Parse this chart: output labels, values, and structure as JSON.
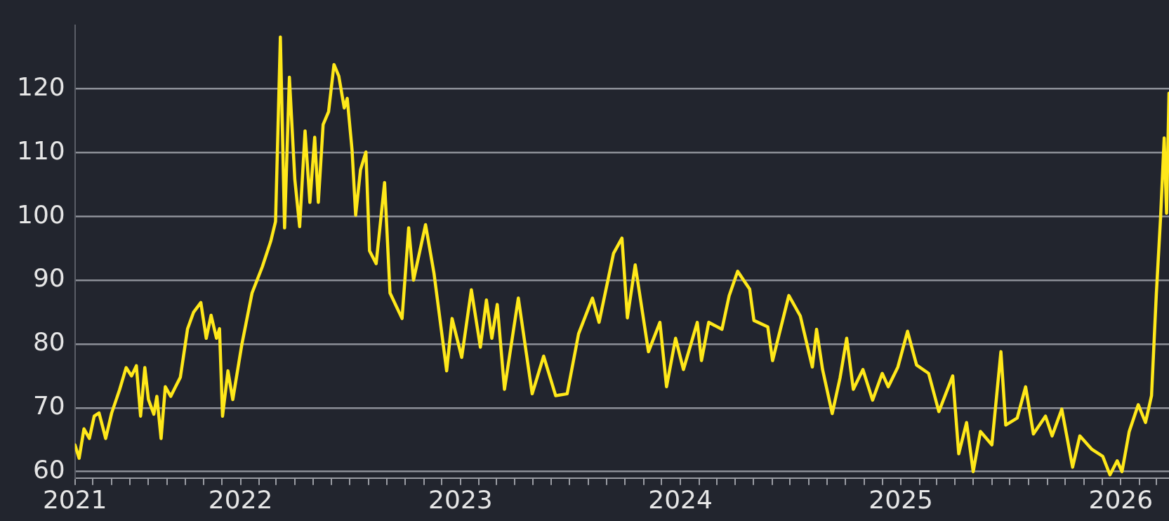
{
  "chart_data": {
    "type": "line",
    "x": [
      "2021-04-01",
      "2021-04-08",
      "2021-04-16",
      "2021-04-25",
      "2021-05-03",
      "2021-05-11",
      "2021-05-18",
      "2021-05-22",
      "2021-06-01",
      "2021-06-14",
      "2021-06-25",
      "2021-07-04",
      "2021-07-12",
      "2021-07-19",
      "2021-07-26",
      "2021-08-01",
      "2021-08-10",
      "2021-08-15",
      "2021-08-22",
      "2021-08-29",
      "2021-09-07",
      "2021-09-15",
      "2021-09-23",
      "2021-10-05",
      "2021-10-15",
      "2021-10-27",
      "2021-11-05",
      "2021-11-13",
      "2021-11-22",
      "2021-11-27",
      "2021-12-02",
      "2021-12-11",
      "2021-12-19",
      "2022-01-03",
      "2022-01-20",
      "2022-02-06",
      "2022-02-20",
      "2022-02-28",
      "2022-03-08",
      "2022-03-15",
      "2022-03-23",
      "2022-04-01",
      "2022-04-09",
      "2022-04-18",
      "2022-04-26",
      "2022-05-04",
      "2022-05-10",
      "2022-05-18",
      "2022-05-27",
      "2022-06-05",
      "2022-06-13",
      "2022-06-22",
      "2022-06-27",
      "2022-07-05",
      "2022-07-11",
      "2022-07-19",
      "2022-07-28",
      "2022-08-03",
      "2022-08-14",
      "2022-08-28",
      "2022-09-06",
      "2022-09-26",
      "2022-10-07",
      "2022-10-15",
      "2022-11-04",
      "2022-11-18",
      "2022-12-09",
      "2022-12-18",
      "2023-01-03",
      "2023-01-19",
      "2023-02-03",
      "2023-02-13",
      "2023-02-22",
      "2023-03-03",
      "2023-03-15",
      "2023-04-07",
      "2023-04-30",
      "2023-05-19",
      "2023-06-08",
      "2023-06-27",
      "2023-07-16",
      "2023-08-08",
      "2023-08-19",
      "2023-09-12",
      "2023-09-26",
      "2023-10-05",
      "2023-10-18",
      "2023-11-09",
      "2023-11-28",
      "2023-12-09",
      "2023-12-24",
      "2024-01-06",
      "2024-01-29",
      "2024-02-05",
      "2024-02-17",
      "2024-03-10",
      "2024-03-22",
      "2024-04-05",
      "2024-04-25",
      "2024-05-02",
      "2024-05-25",
      "2024-06-02",
      "2024-06-29",
      "2024-07-18",
      "2024-08-07",
      "2024-08-14",
      "2024-08-24",
      "2024-09-09",
      "2024-09-22",
      "2024-10-03",
      "2024-10-14",
      "2024-10-30",
      "2024-11-15",
      "2024-12-01",
      "2024-12-11",
      "2024-12-27",
      "2025-01-12",
      "2025-01-27",
      "2025-02-16",
      "2025-03-05",
      "2025-03-28",
      "2025-04-07",
      "2025-04-20",
      "2025-05-01",
      "2025-05-13",
      "2025-06-01",
      "2025-06-16",
      "2025-06-24",
      "2025-07-13",
      "2025-07-27",
      "2025-08-09",
      "2025-08-29",
      "2025-09-09",
      "2025-09-25",
      "2025-10-13",
      "2025-10-25",
      "2025-11-14",
      "2025-12-02",
      "2025-12-14",
      "2025-12-26",
      "2026-01-03",
      "2026-01-15",
      "2026-01-30",
      "2026-02-11",
      "2026-02-21",
      "2026-03-01",
      "2026-03-08",
      "2026-03-14",
      "2026-03-18",
      "2026-03-22"
    ],
    "series": [
      {
        "color": "#ffe81a",
        "values": [
          64.2,
          62.1,
          66.7,
          65.2,
          68.7,
          69.2,
          66.7,
          65.2,
          69.2,
          72.8,
          76.3,
          75,
          76.6,
          68.7,
          76.3,
          71.3,
          69,
          71.8,
          65.2,
          73.3,
          71.8,
          73.3,
          74.8,
          82.4,
          85,
          86.5,
          80.9,
          84.5,
          80.9,
          82.4,
          68.7,
          75.8,
          71.3,
          79.9,
          88,
          92.1,
          96.1,
          99.2,
          128.1,
          98.2,
          121.8,
          105.8,
          98.4,
          113.4,
          102.2,
          112.4,
          102.2,
          114.4,
          116.4,
          123.8,
          122,
          117,
          118.5,
          110.4,
          100.2,
          107.3,
          110.1,
          94.6,
          92.6,
          105.3,
          88,
          84,
          98.2,
          90,
          98.7,
          91.1,
          75.8,
          84,
          77.9,
          88.5,
          79.5,
          86.9,
          80.9,
          86.2,
          72.9,
          87.2,
          72.2,
          78.1,
          71.9,
          72.2,
          81.6,
          87.2,
          83.4,
          94.2,
          96.6,
          84.1,
          92.4,
          78.8,
          83.4,
          73.3,
          80.9,
          76,
          83.4,
          77.4,
          83.4,
          82.3,
          87.6,
          91.4,
          88.6,
          83.7,
          82.7,
          77.4,
          87.6,
          84.4,
          76.4,
          82.3,
          76,
          69.1,
          74.7,
          80.9,
          72.9,
          76,
          71.2,
          75.4,
          73.3,
          76.4,
          82,
          76.7,
          75.4,
          69.4,
          75,
          62.8,
          67.7,
          60,
          66.3,
          64.2,
          78.8,
          67.3,
          68.4,
          73.3,
          65.9,
          68.7,
          65.6,
          69.8,
          60.7,
          65.6,
          63.5,
          62.4,
          59.5,
          61.7,
          60,
          66.3,
          70.5,
          67.7,
          71.9,
          87.9,
          99.8,
          112.3,
          100.5,
          119.3
        ]
      }
    ],
    "xlim": [
      "2021-04-01",
      "2026-03-22"
    ],
    "xticks": [
      {
        "value": "2021-04-01",
        "label": "2021"
      },
      {
        "value": "2021-05-01",
        "label": null
      },
      {
        "value": "2021-06-01",
        "label": null
      },
      {
        "value": "2021-07-01",
        "label": null
      },
      {
        "value": "2021-08-01",
        "label": null
      },
      {
        "value": "2021-09-01",
        "label": null
      },
      {
        "value": "2021-10-01",
        "label": null
      },
      {
        "value": "2021-11-01",
        "label": null
      },
      {
        "value": "2021-12-01",
        "label": null
      },
      {
        "value": "2022-01-01",
        "label": "2022"
      },
      {
        "value": "2022-02-01",
        "label": null
      },
      {
        "value": "2022-03-01",
        "label": null
      },
      {
        "value": "2022-04-01",
        "label": null
      },
      {
        "value": "2022-05-01",
        "label": null
      },
      {
        "value": "2022-06-01",
        "label": null
      },
      {
        "value": "2022-07-01",
        "label": null
      },
      {
        "value": "2022-08-01",
        "label": null
      },
      {
        "value": "2022-09-01",
        "label": null
      },
      {
        "value": "2022-10-01",
        "label": null
      },
      {
        "value": "2022-11-01",
        "label": null
      },
      {
        "value": "2022-12-01",
        "label": null
      },
      {
        "value": "2023-01-01",
        "label": "2023"
      },
      {
        "value": "2023-02-01",
        "label": null
      },
      {
        "value": "2023-03-01",
        "label": null
      },
      {
        "value": "2023-04-01",
        "label": null
      },
      {
        "value": "2023-05-01",
        "label": null
      },
      {
        "value": "2023-06-01",
        "label": null
      },
      {
        "value": "2023-07-01",
        "label": null
      },
      {
        "value": "2023-08-01",
        "label": null
      },
      {
        "value": "2023-09-01",
        "label": null
      },
      {
        "value": "2023-10-01",
        "label": null
      },
      {
        "value": "2023-11-01",
        "label": null
      },
      {
        "value": "2023-12-01",
        "label": null
      },
      {
        "value": "2024-01-01",
        "label": "2024"
      },
      {
        "value": "2024-02-01",
        "label": null
      },
      {
        "value": "2024-03-01",
        "label": null
      },
      {
        "value": "2024-04-01",
        "label": null
      },
      {
        "value": "2024-05-01",
        "label": null
      },
      {
        "value": "2024-06-01",
        "label": null
      },
      {
        "value": "2024-07-01",
        "label": null
      },
      {
        "value": "2024-08-01",
        "label": null
      },
      {
        "value": "2024-09-01",
        "label": null
      },
      {
        "value": "2024-10-01",
        "label": null
      },
      {
        "value": "2024-11-01",
        "label": null
      },
      {
        "value": "2024-12-01",
        "label": null
      },
      {
        "value": "2025-01-01",
        "label": "2025"
      },
      {
        "value": "2025-02-01",
        "label": null
      },
      {
        "value": "2025-03-01",
        "label": null
      },
      {
        "value": "2025-04-01",
        "label": null
      },
      {
        "value": "2025-05-01",
        "label": null
      },
      {
        "value": "2025-06-01",
        "label": null
      },
      {
        "value": "2025-07-01",
        "label": null
      },
      {
        "value": "2025-08-01",
        "label": null
      },
      {
        "value": "2025-09-01",
        "label": null
      },
      {
        "value": "2025-10-01",
        "label": null
      },
      {
        "value": "2025-11-01",
        "label": null
      },
      {
        "value": "2025-12-01",
        "label": null
      },
      {
        "value": "2026-01-01",
        "label": "2026"
      },
      {
        "value": "2026-02-01",
        "label": null
      },
      {
        "value": "2026-03-01",
        "label": null
      }
    ],
    "ylim": [
      59,
      130
    ],
    "yticks": [
      60,
      70,
      80,
      90,
      100,
      110,
      120
    ],
    "grid": "y",
    "marker": "none",
    "line_style": "solid"
  }
}
